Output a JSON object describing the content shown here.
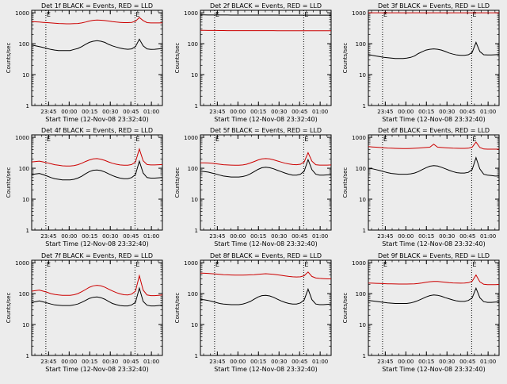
{
  "figure": {
    "xlabel": "Start Time (12-Nov-08 23:32:40)",
    "ylabel": "Counts/sec",
    "x_ticks": [
      "23:45",
      "00:00",
      "00:15",
      "00:30",
      "00:45",
      "01:00"
    ],
    "y_ticks": [
      "1",
      "10",
      "100",
      "1000"
    ],
    "marker_labels": [
      "E",
      "E"
    ]
  },
  "chart_data": [
    {
      "type": "line",
      "title": "Det 1f BLACK = Events, RED = LLD",
      "ylim": [
        1,
        1200
      ],
      "y_scale": "log",
      "x_start": "23:32:40",
      "x_end": "01:08:00",
      "markers_at": [
        "23:43",
        "00:48"
      ],
      "series": [
        {
          "color": "#cc0000",
          "values": [
            520,
            510,
            500,
            490,
            480,
            470,
            460,
            450,
            445,
            440,
            440,
            445,
            450,
            470,
            500,
            540,
            570,
            580,
            575,
            560,
            540,
            520,
            500,
            490,
            480,
            480,
            490,
            530,
            700,
            560,
            480,
            470,
            470,
            470,
            475
          ]
        },
        {
          "color": "#000000",
          "values": [
            90,
            85,
            80,
            75,
            70,
            65,
            62,
            60,
            60,
            60,
            60,
            65,
            70,
            80,
            95,
            110,
            120,
            125,
            120,
            110,
            95,
            85,
            78,
            72,
            68,
            66,
            68,
            80,
            140,
            85,
            68,
            65,
            66,
            68,
            70
          ]
        }
      ]
    },
    {
      "type": "line",
      "title": "Det 2f BLACK = Events, RED = LLD",
      "ylim": [
        1,
        1200
      ],
      "y_scale": "log",
      "x_start": "23:32:40",
      "x_end": "01:08:00",
      "markers_at": [
        "23:43",
        "00:48"
      ],
      "series": [
        {
          "color": "#cc0000",
          "values": [
            270,
            270,
            268,
            268,
            267,
            266,
            266,
            265,
            265,
            265,
            265,
            265,
            264,
            264,
            264,
            265,
            265,
            265,
            264,
            264,
            263,
            263,
            263,
            263,
            262,
            262,
            262,
            262,
            262,
            262,
            262,
            262,
            262,
            262,
            262
          ]
        },
        {
          "color": "#000000",
          "values": [
            850,
            850,
            848,
            848,
            846,
            846,
            845,
            845,
            844,
            844,
            843,
            843,
            842,
            842,
            842,
            842,
            841,
            841,
            840,
            840,
            840,
            839,
            839,
            838,
            838,
            838,
            837,
            837,
            837,
            836,
            836,
            836,
            835,
            835,
            835
          ]
        }
      ]
    },
    {
      "type": "line",
      "title": "Det 3f BLACK = Events, RED = LLD",
      "ylim": [
        1,
        1200
      ],
      "y_scale": "log",
      "x_start": "23:32:40",
      "x_end": "01:08:00",
      "markers_at": [
        "23:43",
        "00:48"
      ],
      "series": [
        {
          "color": "#cc0000",
          "values": [
            1000,
            1000,
            1000,
            1000,
            1000,
            1000,
            1000,
            1000,
            1000,
            1000,
            1000,
            1000,
            1000,
            1000,
            1000,
            1000,
            1000,
            1000,
            1000,
            1000,
            1000,
            1000,
            1000,
            1000,
            1000,
            1000,
            1000,
            1000,
            1000,
            1000,
            1000,
            1000,
            1000,
            1000,
            1000
          ]
        },
        {
          "color": "#000000",
          "values": [
            45,
            42,
            40,
            38,
            36,
            35,
            34,
            33,
            33,
            33,
            34,
            36,
            40,
            48,
            55,
            62,
            66,
            68,
            66,
            62,
            56,
            50,
            46,
            43,
            42,
            42,
            44,
            52,
            110,
            56,
            44,
            43,
            43,
            44,
            45
          ]
        }
      ]
    },
    {
      "type": "line",
      "title": "Det 4f BLACK = Events, RED = LLD",
      "ylim": [
        1,
        1200
      ],
      "y_scale": "log",
      "x_start": "23:32:40",
      "x_end": "01:08:00",
      "markers_at": [
        "23:43",
        "00:48"
      ],
      "series": [
        {
          "color": "#cc0000",
          "values": [
            160,
            165,
            170,
            160,
            150,
            140,
            130,
            125,
            120,
            118,
            118,
            122,
            130,
            145,
            165,
            185,
            200,
            205,
            195,
            180,
            160,
            145,
            135,
            128,
            125,
            125,
            132,
            160,
            420,
            175,
            132,
            128,
            128,
            130,
            132
          ]
        },
        {
          "color": "#000000",
          "values": [
            62,
            65,
            68,
            62,
            56,
            50,
            46,
            44,
            42,
            42,
            42,
            44,
            48,
            55,
            66,
            78,
            86,
            88,
            84,
            76,
            66,
            58,
            52,
            48,
            46,
            46,
            50,
            62,
            170,
            70,
            50,
            48,
            48,
            49,
            50
          ]
        }
      ]
    },
    {
      "type": "line",
      "title": "Det 5f BLACK = Events, RED = LLD",
      "ylim": [
        1,
        1200
      ],
      "y_scale": "log",
      "x_start": "23:32:40",
      "x_end": "01:08:00",
      "markers_at": [
        "23:43",
        "00:48"
      ],
      "series": [
        {
          "color": "#cc0000",
          "values": [
            150,
            150,
            148,
            145,
            140,
            135,
            130,
            128,
            126,
            125,
            125,
            128,
            135,
            148,
            165,
            185,
            200,
            205,
            200,
            188,
            172,
            158,
            146,
            138,
            132,
            130,
            135,
            160,
            320,
            170,
            130,
            126,
            126,
            126,
            128
          ]
        },
        {
          "color": "#000000",
          "values": [
            80,
            78,
            75,
            70,
            65,
            60,
            56,
            54,
            52,
            52,
            52,
            54,
            58,
            66,
            78,
            92,
            104,
            108,
            104,
            96,
            86,
            78,
            70,
            64,
            60,
            60,
            64,
            80,
            190,
            90,
            64,
            60,
            60,
            61,
            62
          ]
        }
      ]
    },
    {
      "type": "line",
      "title": "Det 6f BLACK = Events, RED = LLD",
      "ylim": [
        1,
        1200
      ],
      "y_scale": "log",
      "x_start": "23:32:40",
      "x_end": "01:08:00",
      "markers_at": [
        "23:43",
        "00:48"
      ],
      "series": [
        {
          "color": "#cc0000",
          "values": [
            500,
            490,
            480,
            470,
            460,
            450,
            445,
            440,
            438,
            435,
            435,
            438,
            442,
            450,
            460,
            470,
            480,
            600,
            480,
            470,
            460,
            452,
            446,
            442,
            440,
            440,
            445,
            480,
            700,
            470,
            420,
            415,
            415,
            415,
            415
          ]
        },
        {
          "color": "#000000",
          "values": [
            100,
            96,
            90,
            84,
            78,
            72,
            68,
            66,
            64,
            64,
            64,
            66,
            70,
            78,
            90,
            104,
            116,
            122,
            118,
            108,
            96,
            86,
            78,
            72,
            70,
            70,
            74,
            90,
            220,
            95,
            64,
            60,
            58,
            56,
            56
          ]
        }
      ]
    },
    {
      "type": "line",
      "title": "Det 7f BLACK = Events, RED = LLD",
      "ylim": [
        1,
        1200
      ],
      "y_scale": "log",
      "x_start": "23:32:40",
      "x_end": "01:08:00",
      "markers_at": [
        "23:43",
        "00:48"
      ],
      "series": [
        {
          "color": "#cc0000",
          "values": [
            120,
            125,
            130,
            120,
            110,
            100,
            94,
            90,
            88,
            88,
            88,
            92,
            100,
            115,
            135,
            160,
            178,
            185,
            178,
            162,
            140,
            122,
            108,
            98,
            92,
            90,
            96,
            120,
            380,
            130,
            90,
            86,
            86,
            88,
            90
          ]
        },
        {
          "color": "#000000",
          "values": [
            52,
            55,
            58,
            54,
            50,
            46,
            43,
            42,
            41,
            41,
            41,
            43,
            46,
            52,
            60,
            70,
            76,
            78,
            74,
            66,
            56,
            48,
            44,
            41,
            40,
            40,
            43,
            52,
            150,
            56,
            42,
            40,
            40,
            41,
            42
          ]
        }
      ]
    },
    {
      "type": "line",
      "title": "Det 8f BLACK = Events, RED = LLD",
      "ylim": [
        1,
        1200
      ],
      "y_scale": "log",
      "x_start": "23:32:40",
      "x_end": "01:08:00",
      "markers_at": [
        "23:43",
        "00:48"
      ],
      "series": [
        {
          "color": "#cc0000",
          "values": [
            460,
            455,
            450,
            440,
            430,
            420,
            410,
            405,
            400,
            398,
            396,
            398,
            400,
            405,
            410,
            420,
            430,
            440,
            430,
            420,
            405,
            390,
            375,
            360,
            350,
            345,
            350,
            380,
            500,
            360,
            320,
            310,
            305,
            300,
            300
          ]
        },
        {
          "color": "#000000",
          "values": [
            65,
            63,
            60,
            56,
            52,
            48,
            46,
            45,
            44,
            44,
            44,
            46,
            50,
            56,
            66,
            78,
            86,
            88,
            84,
            76,
            66,
            58,
            52,
            48,
            46,
            46,
            50,
            62,
            140,
            64,
            46,
            44,
            44,
            45,
            46
          ]
        }
      ]
    },
    {
      "type": "line",
      "title": "Det 9f BLACK = Events, RED = LLD",
      "ylim": [
        1,
        1200
      ],
      "y_scale": "log",
      "x_start": "23:32:40",
      "x_end": "01:08:00",
      "markers_at": [
        "23:43",
        "00:48"
      ],
      "series": [
        {
          "color": "#cc0000",
          "values": [
            220,
            218,
            215,
            212,
            210,
            208,
            206,
            205,
            204,
            204,
            204,
            205,
            208,
            214,
            222,
            232,
            242,
            248,
            246,
            240,
            232,
            226,
            222,
            220,
            218,
            220,
            226,
            250,
            400,
            240,
            200,
            195,
            195,
            196,
            198
          ]
        },
        {
          "color": "#000000",
          "values": [
            60,
            58,
            56,
            54,
            52,
            50,
            49,
            48,
            48,
            48,
            48,
            50,
            54,
            60,
            68,
            78,
            86,
            90,
            88,
            82,
            74,
            68,
            62,
            58,
            56,
            56,
            60,
            72,
            150,
            74,
            55,
            52,
            52,
            53,
            54
          ]
        }
      ]
    }
  ]
}
